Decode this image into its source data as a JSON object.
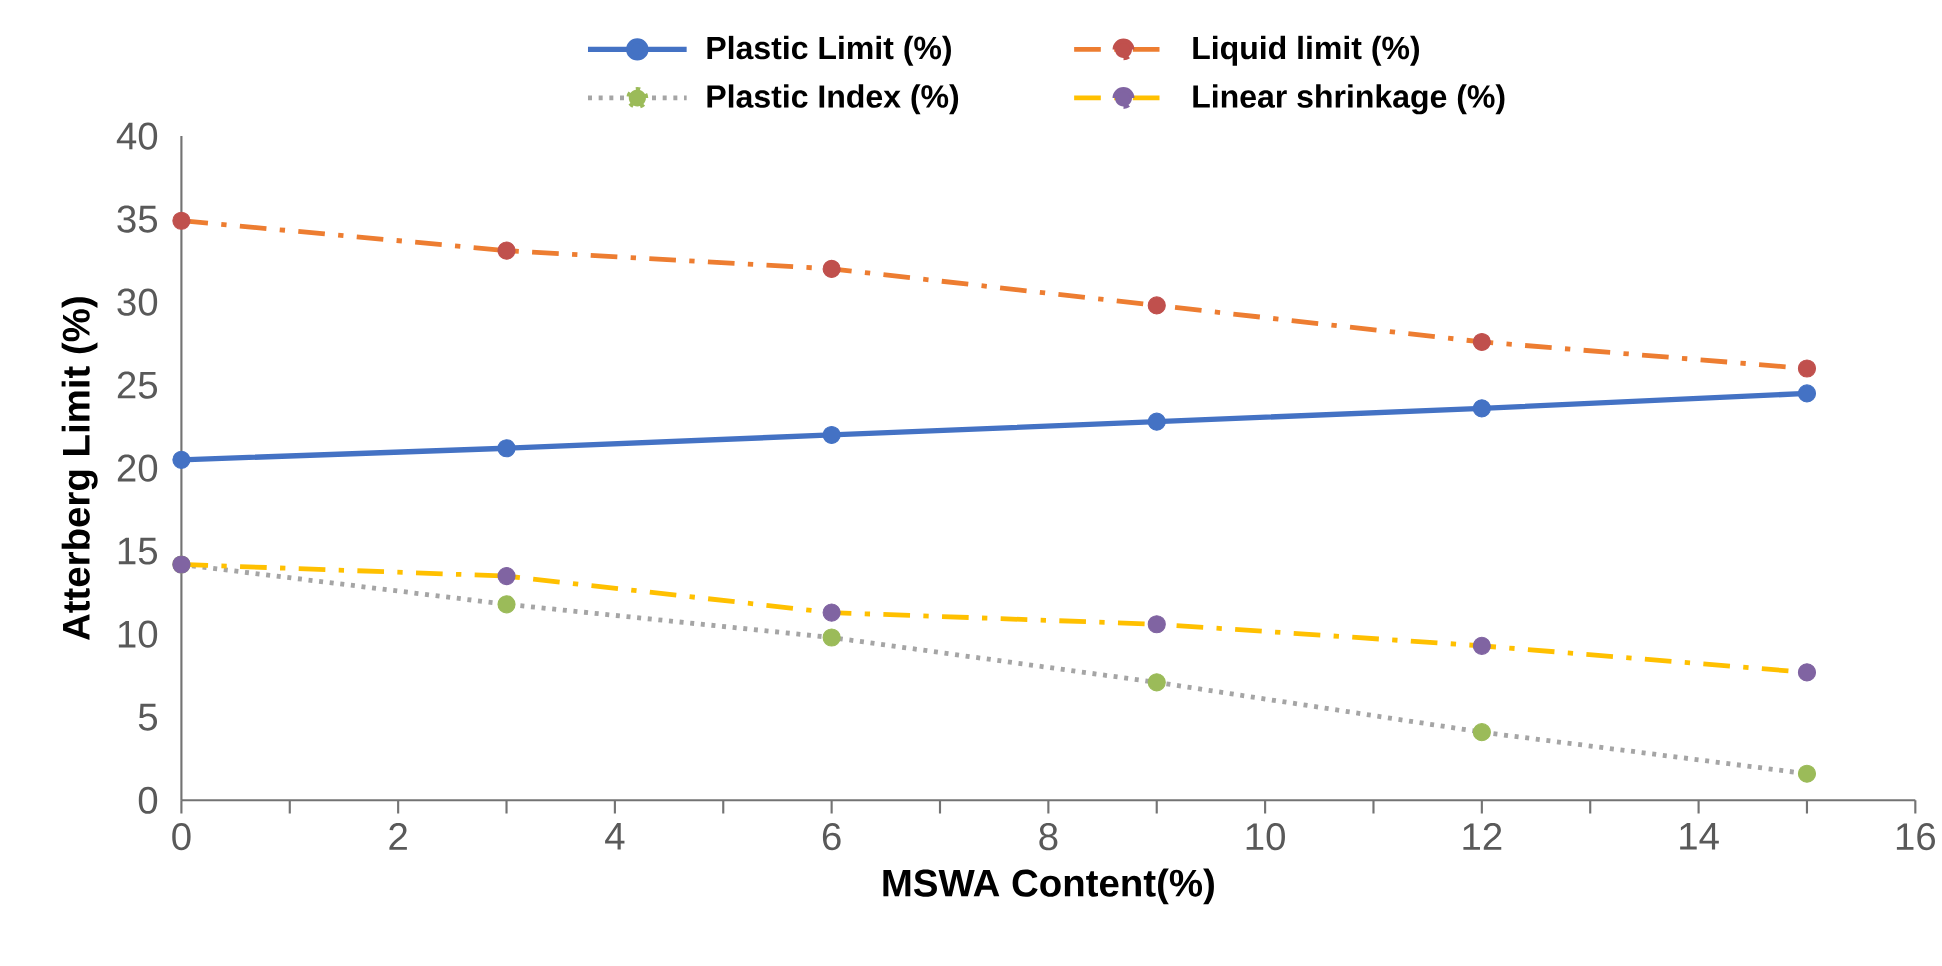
{
  "chart_data": {
    "type": "line",
    "xlabel": "MSWA Content(%)",
    "ylabel": "Atterberg Limit (%)",
    "x": [
      0,
      3,
      6,
      9,
      12,
      15
    ],
    "xlim": [
      0,
      16
    ],
    "xticks": [
      0,
      2,
      4,
      6,
      8,
      10,
      12,
      14,
      16
    ],
    "ylim": [
      0,
      40
    ],
    "yticks": [
      0,
      5,
      10,
      15,
      20,
      25,
      30,
      35,
      40
    ],
    "grid": false,
    "legend": "top",
    "marker": "circle",
    "series": [
      {
        "name": "Plastic Limit (%)",
        "color": "#4472c4",
        "colors": [
          "#4472c4",
          "#4472c4",
          "#4472c4",
          "#4472c4",
          "#4472c4",
          "#4472c4"
        ],
        "line_style": "solid",
        "values": [
          20.5,
          21.2,
          22.0,
          22.8,
          23.6,
          24.5
        ]
      },
      {
        "name": "Liquid limit (%)",
        "color": "#ed7d31",
        "colors": [
          "#c0504d",
          "#c0504d",
          "#c0504d",
          "#c0504d",
          "#c0504d",
          "#c0504d"
        ],
        "line_style": "dashdot",
        "values": [
          34.9,
          33.1,
          32.0,
          29.8,
          27.6,
          26.0
        ]
      },
      {
        "name": "Plastic Index (%)",
        "color": "#a5a5a5",
        "colors": [
          "#9bbb59",
          "#9bbb59",
          "#9bbb59",
          "#9bbb59",
          "#9bbb59",
          "#9bbb59"
        ],
        "line_style": "dotted",
        "values": [
          14.2,
          11.8,
          9.8,
          7.1,
          4.1,
          1.6
        ]
      },
      {
        "name": "Linear shrinkage (%)",
        "color": "#ffc000",
        "colors": [
          "#8064a2",
          "#8064a2",
          "#8064a2",
          "#8064a2",
          "#8064a2",
          "#8064a2"
        ],
        "line_style": "dashdot",
        "values": [
          14.2,
          13.5,
          11.3,
          10.6,
          9.3,
          7.7
        ]
      }
    ]
  }
}
